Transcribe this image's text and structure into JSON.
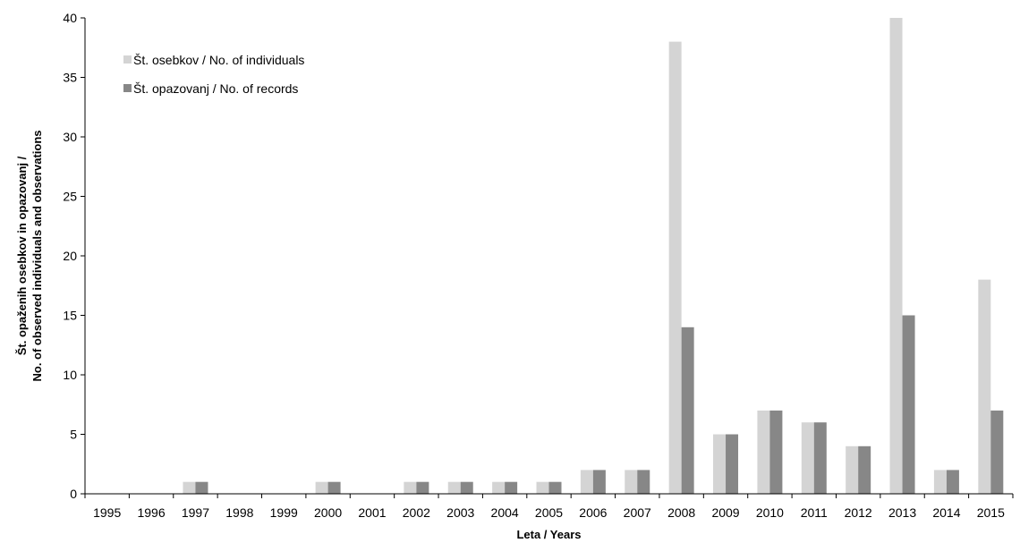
{
  "chart_data": {
    "type": "bar",
    "title": "",
    "xlabel": "Leta / Years",
    "ylabel_lines": [
      "Št. opaženih osebkov in opazovanj /",
      "No. of observed individuals and observations"
    ],
    "categories": [
      "1995",
      "1996",
      "1997",
      "1998",
      "1999",
      "2000",
      "2001",
      "2002",
      "2003",
      "2004",
      "2005",
      "2006",
      "2007",
      "2008",
      "2009",
      "2010",
      "2011",
      "2012",
      "2013",
      "2014",
      "2015"
    ],
    "series": [
      {
        "name": "Št. osebkov / No. of individuals",
        "color": "#d4d4d4",
        "values": [
          0,
          0,
          1,
          0,
          0,
          1,
          0,
          1,
          1,
          1,
          1,
          2,
          2,
          38,
          5,
          7,
          6,
          4,
          40,
          2,
          18
        ]
      },
      {
        "name": "Št. opazovanj / No. of records",
        "color": "#878787",
        "values": [
          0,
          0,
          1,
          0,
          0,
          1,
          0,
          1,
          1,
          1,
          1,
          2,
          2,
          14,
          5,
          7,
          6,
          4,
          15,
          2,
          7
        ]
      }
    ],
    "ylim": [
      0,
      40
    ],
    "yticks": [
      0,
      5,
      10,
      15,
      20,
      25,
      30,
      35,
      40
    ],
    "grid": false,
    "legend_position": "top-left"
  }
}
